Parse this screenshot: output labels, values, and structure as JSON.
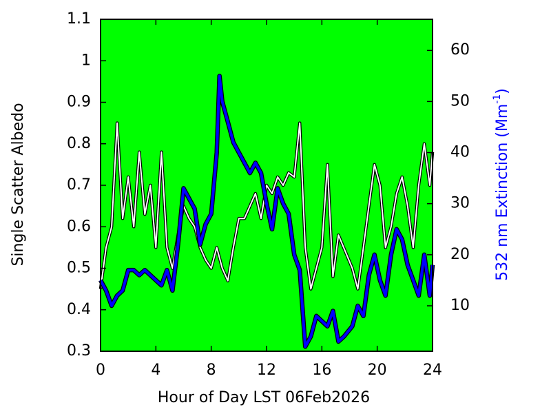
{
  "chart_data": {
    "type": "line",
    "xlabel": "Hour of Day LST 06Feb2026",
    "ylabel": "Single Scatter Albedo",
    "y2label_parts": [
      "532 nm Extinction (Mm",
      "-1",
      ")"
    ],
    "background": "#00ff00",
    "xlim": [
      0,
      24
    ],
    "xticks": [
      0,
      4,
      8,
      12,
      16,
      20,
      24
    ],
    "ylim": [
      0.3,
      1.1
    ],
    "yticks": [
      0.3,
      0.4,
      0.5,
      0.6,
      0.7,
      0.8,
      0.9,
      1,
      1.1
    ],
    "y2lim": [
      1.1,
      66.1
    ],
    "y2ticks": [
      10,
      20,
      30,
      40,
      50,
      60
    ],
    "y2color": "#0000ff",
    "series": [
      {
        "color": "#ffffff",
        "axis": "y",
        "width": 2,
        "x": [
          0,
          0.4,
          0.8,
          1.2,
          1.6,
          2.0,
          2.4,
          2.8,
          3.2,
          3.6,
          4.0,
          4.4,
          4.8,
          5.2,
          5.6,
          6.0,
          6.4,
          6.8,
          7.2,
          7.6,
          8.0,
          8.4,
          8.8,
          9.2,
          9.6,
          10.0,
          10.4,
          10.8,
          11.2,
          11.6,
          12.0,
          12.4,
          12.8,
          13.2,
          13.6,
          14.0,
          14.4,
          14.8,
          15.2,
          15.6,
          16.0,
          16.4,
          16.8,
          17.2,
          18.2,
          18.6,
          19.0,
          19.4,
          19.8,
          20.2,
          20.6,
          21.0,
          21.4,
          21.8,
          22.2,
          22.6,
          23.0,
          23.4,
          23.8,
          24
        ],
        "values": [
          0.45,
          0.55,
          0.6,
          0.85,
          0.62,
          0.72,
          0.6,
          0.78,
          0.63,
          0.7,
          0.55,
          0.78,
          0.55,
          0.5,
          0.58,
          0.65,
          0.62,
          0.6,
          0.55,
          0.52,
          0.5,
          0.55,
          0.5,
          0.47,
          0.55,
          0.62,
          0.62,
          0.65,
          0.68,
          0.62,
          0.7,
          0.68,
          0.72,
          0.7,
          0.73,
          0.72,
          0.85,
          0.55,
          0.45,
          0.5,
          0.55,
          0.75,
          0.48,
          0.58,
          0.5,
          0.45,
          0.55,
          0.65,
          0.75,
          0.7,
          0.55,
          0.6,
          0.68,
          0.72,
          0.65,
          0.55,
          0.7,
          0.8,
          0.7,
          0.78
        ]
      },
      {
        "color": "#0000ff",
        "axis": "y2",
        "width": 4,
        "x": [
          0,
          0.4,
          0.8,
          1.2,
          1.6,
          2.0,
          2.4,
          2.8,
          3.2,
          3.6,
          4.0,
          4.4,
          4.8,
          5.2,
          5.6,
          6.0,
          6.4,
          6.8,
          7.2,
          7.6,
          8.0,
          8.4,
          8.6,
          8.8,
          9.2,
          9.6,
          10.0,
          10.4,
          10.8,
          11.2,
          11.6,
          12.0,
          12.4,
          12.8,
          13.2,
          13.6,
          14.0,
          14.4,
          14.8,
          15.2,
          15.6,
          16.0,
          16.4,
          16.8,
          17.2,
          17.6,
          18.2,
          18.6,
          19.0,
          19.4,
          19.8,
          20.2,
          20.6,
          21.0,
          21.4,
          21.8,
          22.2,
          22.6,
          23.0,
          23.4,
          23.8,
          24
        ],
        "values": [
          15,
          13,
          10,
          12,
          13,
          17,
          17,
          16,
          17,
          16,
          15,
          14,
          17,
          13,
          22,
          33,
          31,
          29,
          22,
          26,
          28,
          40,
          55,
          50,
          46,
          42,
          40,
          38,
          36,
          38,
          36,
          30,
          25,
          33,
          30,
          28,
          20,
          17,
          2,
          4,
          8,
          7,
          6,
          9,
          3,
          4,
          6,
          10,
          8,
          16,
          20,
          15,
          12,
          20,
          25,
          23,
          18,
          15,
          12,
          20,
          12,
          18
        ]
      }
    ]
  }
}
